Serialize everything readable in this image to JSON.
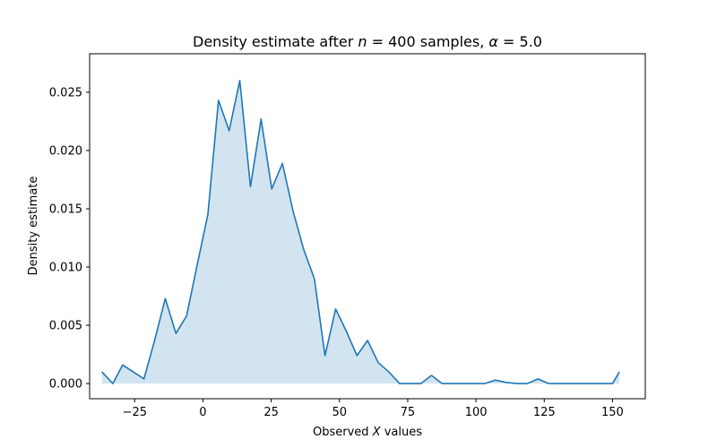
{
  "chart_data": {
    "type": "area",
    "title": {
      "prefix": "Density estimate after ",
      "n_symbol": "n",
      "n_eq": " = 400 samples, ",
      "alpha_symbol": "α",
      "alpha_eq": " = 5.0"
    },
    "xlabel": {
      "prefix": "Observed ",
      "var": "X",
      "suffix": " values"
    },
    "ylabel": "Density estimate",
    "xlim": [
      -41.5,
      162
    ],
    "ylim": [
      -0.0013,
      0.0283
    ],
    "xticks": [
      -25,
      0,
      25,
      50,
      75,
      100,
      125,
      150
    ],
    "xtick_labels": [
      "−25",
      "0",
      "25",
      "50",
      "75",
      "100",
      "125",
      "150"
    ],
    "yticks": [
      0.0,
      0.005,
      0.01,
      0.015,
      0.02,
      0.025
    ],
    "ytick_labels": [
      "0.000",
      "0.005",
      "0.010",
      "0.015",
      "0.020",
      "0.025"
    ],
    "grid": false,
    "series": [
      {
        "line_color": "#1f77b4",
        "fill_color": "#1f77b4",
        "x": [
          -37.0,
          -33.0,
          -29.4,
          -25.5,
          -21.6,
          -17.7,
          -13.8,
          -9.9,
          -6.0,
          -2.1,
          1.8,
          5.7,
          9.6,
          13.5,
          17.4,
          21.3,
          25.2,
          29.1,
          33.0,
          36.9,
          40.8,
          44.7,
          48.6,
          52.5,
          56.4,
          60.3,
          64.2,
          68.1,
          72.0,
          75.9,
          79.8,
          83.7,
          87.6,
          91.5,
          95.4,
          99.3,
          103.2,
          107.1,
          111.0,
          114.9,
          118.8,
          122.7,
          126.6,
          130.5,
          134.4,
          138.3,
          142.2,
          146.1,
          150.0,
          152.5
        ],
        "y": [
          0.001,
          0.0,
          0.0016,
          0.001,
          0.0004,
          0.0037,
          0.0073,
          0.0043,
          0.0058,
          0.0102,
          0.0145,
          0.0243,
          0.0217,
          0.026,
          0.0169,
          0.0227,
          0.0167,
          0.0189,
          0.0148,
          0.0115,
          0.009,
          0.0024,
          0.0064,
          0.0045,
          0.0024,
          0.0037,
          0.0018,
          0.001,
          0.0,
          0.0,
          0.0,
          0.0007,
          0.0,
          0.0,
          0.0,
          0.0,
          0.0,
          0.0003,
          0.0001,
          0.0,
          0.0,
          0.0004,
          0.0,
          0.0,
          0.0,
          0.0,
          0.0,
          0.0,
          0.0,
          0.001
        ]
      }
    ]
  }
}
